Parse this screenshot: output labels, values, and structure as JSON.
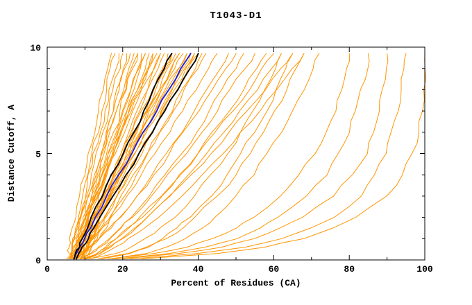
{
  "chart_data": {
    "type": "line",
    "title": "T1043-D1",
    "xlabel": "Percent of Residues (CA)",
    "ylabel": "Distance Cutoff, A",
    "xlim": [
      0,
      100
    ],
    "ylim": [
      0,
      10
    ],
    "xticks": [
      0,
      20,
      40,
      60,
      80,
      100
    ],
    "yticks": [
      0,
      5,
      10
    ],
    "x_minor_step": 10,
    "y_minor_step": 1,
    "grid": false,
    "legend": "none",
    "colors": {
      "orange": "#ff9500",
      "black": "#000000",
      "blue": "#2020d0"
    },
    "y_levels": [
      0.05,
      0.3,
      0.6,
      1,
      1.5,
      2,
      3,
      4,
      5,
      6,
      7,
      8,
      9,
      9.7
    ],
    "series": [
      {
        "group": "orange",
        "x": [
          5.1,
          5.4,
          5.7,
          6.2,
          6.9,
          7.5,
          8.7,
          9.9,
          11.2,
          12.4,
          13.7,
          14.9,
          16.1,
          17
        ]
      },
      {
        "group": "orange",
        "x": [
          5.6,
          6.0,
          6.4,
          6.9,
          7.6,
          8.3,
          9.6,
          10.9,
          12.2,
          13.4,
          14.7,
          15.9,
          17.1,
          18
        ]
      },
      {
        "group": "orange",
        "x": [
          6.0,
          6.3,
          6.7,
          7.2,
          7.8,
          8.5,
          9.8,
          11.1,
          12.5,
          13.9,
          15.2,
          16.6,
          18.0,
          19
        ]
      },
      {
        "group": "orange",
        "x": [
          6.1,
          6.4,
          6.9,
          7.4,
          8.2,
          8.9,
          10.3,
          11.8,
          13.2,
          14.7,
          16.1,
          17.6,
          19.0,
          20
        ]
      },
      {
        "group": "orange",
        "x": [
          6.6,
          7.1,
          7.7,
          8.4,
          9.2,
          10.0,
          11.6,
          13.0,
          14.5,
          15.9,
          17.3,
          18.7,
          20.1,
          21
        ]
      },
      {
        "group": "orange",
        "x": [
          7.0,
          7.3,
          7.7,
          8.2,
          8.9,
          9.6,
          11.1,
          12.7,
          14.2,
          15.9,
          17.5,
          19.1,
          20.8,
          22
        ]
      },
      {
        "group": "orange",
        "x": [
          7.1,
          7.5,
          8.0,
          8.6,
          9.5,
          10.3,
          11.9,
          13.6,
          15.2,
          16.9,
          18.6,
          20.2,
          21.8,
          23
        ]
      },
      {
        "group": "orange",
        "x": [
          7.6,
          8.1,
          8.7,
          9.4,
          10.3,
          11.2,
          12.9,
          14.6,
          16.3,
          18.0,
          19.6,
          21.2,
          22.9,
          24
        ]
      },
      {
        "group": "orange",
        "x": [
          8.1,
          8.4,
          8.9,
          9.6,
          10.4,
          11.2,
          13.0,
          14.7,
          16.5,
          18.3,
          20.1,
          21.9,
          23.7,
          25
        ]
      },
      {
        "group": "orange",
        "x": [
          8.1,
          8.6,
          9.1,
          9.9,
          10.8,
          11.7,
          13.6,
          15.4,
          17.3,
          19.1,
          21.0,
          22.9,
          24.7,
          26
        ]
      },
      {
        "group": "orange",
        "x": [
          6.2,
          6.9,
          7.7,
          8.7,
          9.9,
          11.1,
          13.3,
          15.5,
          17.6,
          19.6,
          21.7,
          23.7,
          25.6,
          27
        ]
      },
      {
        "group": "orange",
        "x": [
          6.6,
          7.2,
          7.8,
          8.7,
          9.8,
          10.9,
          13.1,
          15.4,
          17.6,
          19.8,
          22.0,
          24.2,
          26.5,
          28
        ]
      },
      {
        "group": "orange",
        "x": [
          7.1,
          7.5,
          8.0,
          8.8,
          9.8,
          10.9,
          13.1,
          15.3,
          17.6,
          20.0,
          22.4,
          24.8,
          27.3,
          29
        ]
      },
      {
        "group": "orange",
        "x": [
          7.7,
          8.3,
          9.1,
          10.1,
          11.3,
          12.5,
          14.9,
          17.2,
          19.5,
          21.8,
          24.0,
          26.2,
          28.5,
          30
        ]
      },
      {
        "group": "orange",
        "x": [
          8.1,
          8.7,
          9.4,
          10.4,
          11.6,
          12.7,
          15.1,
          17.5,
          19.8,
          22.2,
          24.6,
          27.0,
          29.3,
          31
        ]
      },
      {
        "group": "orange",
        "x": [
          8.7,
          9.5,
          10.4,
          11.5,
          12.9,
          14.2,
          16.7,
          19.1,
          21.5,
          23.8,
          26.0,
          28.3,
          30.5,
          32
        ]
      },
      {
        "group": "orange",
        "x": [
          9.1,
          9.6,
          10.3,
          11.2,
          12.4,
          13.6,
          16.0,
          18.5,
          21.0,
          23.5,
          26.0,
          28.6,
          31.2,
          33
        ]
      },
      {
        "group": "orange",
        "x": [
          9.1,
          9.8,
          10.6,
          11.6,
          12.9,
          14.2,
          16.7,
          19.3,
          21.9,
          24.5,
          27.1,
          29.6,
          32.2,
          34
        ]
      },
      {
        "group": "orange",
        "x": [
          7.2,
          8.0,
          9.0,
          10.2,
          11.8,
          13.2,
          16.2,
          19.1,
          21.9,
          24.8,
          27.6,
          30.3,
          33.1,
          35
        ]
      },
      {
        "group": "orange",
        "x": [
          7.6,
          8.1,
          8.8,
          9.8,
          11.2,
          12.5,
          15.3,
          18.3,
          21.3,
          24.3,
          27.4,
          30.6,
          33.8,
          36
        ]
      },
      {
        "group": "orange",
        "x": [
          8.1,
          8.9,
          9.8,
          11.0,
          12.5,
          14.0,
          17.0,
          19.9,
          22.9,
          26.0,
          28.9,
          31.9,
          34.9,
          37
        ]
      },
      {
        "group": "orange",
        "x": [
          8.8,
          9.8,
          10.9,
          12.3,
          14.0,
          15.6,
          18.8,
          21.8,
          24.8,
          27.7,
          30.5,
          33.3,
          36.1,
          38
        ]
      },
      {
        "group": "orange",
        "x": [
          9.2,
          9.9,
          10.9,
          12.1,
          13.7,
          15.2,
          18.3,
          21.4,
          24.5,
          27.6,
          30.7,
          33.8,
          36.8,
          39
        ]
      },
      {
        "group": "orange",
        "x": [
          9.6,
          10.3,
          11.2,
          12.3,
          13.8,
          15.3,
          18.4,
          21.5,
          24.7,
          27.9,
          31.2,
          34.4,
          37.7,
          40
        ]
      },
      {
        "group": "orange",
        "x": [
          10.2,
          11.2,
          12.2,
          13.6,
          15.3,
          16.9,
          20.2,
          23.4,
          26.5,
          29.7,
          32.8,
          35.8,
          38.9,
          41
        ]
      },
      {
        "group": "orange",
        "x": [
          10.2,
          11.0,
          12.0,
          13.3,
          15.0,
          16.6,
          19.9,
          23.2,
          26.5,
          29.8,
          33.1,
          36.4,
          39.7,
          42
        ]
      },
      {
        "group": "orange",
        "x": [
          6.0,
          6.3,
          6.7,
          7.3,
          8.1,
          8.9,
          10.7,
          12.5,
          14.4,
          16.4,
          18.4,
          20.4,
          22.5,
          24
        ]
      },
      {
        "group": "orange",
        "x": [
          6.5,
          6.9,
          7.3,
          7.9,
          8.8,
          9.7,
          11.6,
          13.5,
          15.6,
          17.7,
          19.9,
          22.1,
          24.4,
          26
        ]
      },
      {
        "group": "orange",
        "x": [
          7.0,
          7.3,
          7.7,
          8.4,
          9.2,
          10.2,
          12.1,
          14.2,
          16.5,
          18.8,
          21.2,
          23.7,
          26.2,
          28
        ]
      },
      {
        "group": "orange",
        "x": [
          7.5,
          7.9,
          8.3,
          9.0,
          9.9,
          10.9,
          13.0,
          15.3,
          17.7,
          20.2,
          22.7,
          25.4,
          28.1,
          30
        ]
      },
      {
        "group": "orange",
        "x": [
          8.1,
          8.5,
          9.0,
          9.8,
          10.9,
          12.1,
          14.5,
          17.0,
          19.7,
          22.4,
          25.2,
          28.0,
          31.0,
          33
        ]
      },
      {
        "group": "orange",
        "x": [
          8.6,
          8.9,
          9.4,
          10.2,
          11.3,
          12.5,
          15.0,
          17.6,
          20.5,
          23.4,
          26.4,
          29.5,
          32.7,
          35
        ]
      },
      {
        "group": "orange",
        "x": [
          9.1,
          9.5,
          10.2,
          11.1,
          12.3,
          13.5,
          16.3,
          19.1,
          22.1,
          25.1,
          28.3,
          31.4,
          34.7,
          37
        ]
      },
      {
        "group": "orange",
        "x": [
          9.6,
          10.0,
          10.6,
          11.4,
          12.7,
          13.9,
          16.7,
          19.7,
          22.8,
          26.1,
          29.5,
          32.9,
          36.5,
          39
        ]
      },
      {
        "group": "orange",
        "x": [
          6.5,
          8.4,
          10.2,
          12.3,
          14.8,
          17.0,
          21.3,
          25.2,
          28.9,
          32.6,
          36.1,
          39.5,
          42.7,
          45
        ]
      },
      {
        "group": "orange",
        "x": [
          7.3,
          9.6,
          11.7,
          14.1,
          16.8,
          19.2,
          23.7,
          27.8,
          31.7,
          35.5,
          39.0,
          42.4,
          45.8,
          48
        ]
      },
      {
        "group": "orange",
        "x": [
          7.6,
          9.7,
          11.6,
          14.0,
          16.7,
          19.2,
          23.8,
          28.2,
          32.3,
          36.3,
          40.2,
          43.9,
          47.5,
          50
        ]
      },
      {
        "group": "orange",
        "x": [
          8.6,
          11.4,
          13.9,
          16.6,
          19.6,
          22.2,
          27.1,
          31.4,
          35.5,
          39.3,
          42.9,
          46.4,
          49.7,
          52
        ]
      },
      {
        "group": "orange",
        "x": [
          8.9,
          11.5,
          13.8,
          16.6,
          19.6,
          22.4,
          27.5,
          32.2,
          36.6,
          40.8,
          44.8,
          48.7,
          52.5,
          55
        ]
      },
      {
        "group": "orange",
        "x": [
          9.7,
          12.9,
          15.6,
          18.6,
          21.9,
          24.9,
          30.3,
          35.1,
          39.6,
          43.9,
          47.9,
          51.8,
          55.5,
          58
        ]
      },
      {
        "group": "orange",
        "x": [
          10.0,
          12.8,
          15.3,
          18.3,
          21.6,
          24.6,
          30.1,
          35.2,
          40.0,
          44.6,
          48.9,
          53.2,
          57.2,
          60
        ]
      },
      {
        "group": "orange",
        "x": [
          10.3,
          13.7,
          16.6,
          19.8,
          23.4,
          26.5,
          32.3,
          37.5,
          42.3,
          46.9,
          51.2,
          55.3,
          59.3,
          62
        ]
      },
      {
        "group": "orange",
        "x": [
          10.6,
          13.6,
          16.4,
          19.6,
          23.2,
          26.5,
          32.5,
          38.0,
          43.2,
          48.2,
          53.0,
          57.6,
          62.0,
          65
        ]
      },
      {
        "group": "orange",
        "x": [
          11.4,
          15.1,
          18.3,
          21.8,
          25.7,
          29.2,
          35.5,
          41.2,
          46.5,
          51.5,
          56.2,
          60.7,
          65.0,
          68
        ]
      },
      {
        "group": "orange",
        "x": [
          11.2,
          17.8,
          22.0,
          26.2,
          30.3,
          33.5,
          39.0,
          43.6,
          47.6,
          51.1,
          54.4,
          57.4,
          60.2,
          62
        ]
      },
      {
        "group": "orange",
        "x": [
          13.5,
          21.1,
          25.8,
          30.1,
          34.3,
          37.6,
          43.1,
          47.5,
          51.4,
          54.8,
          57.9,
          60.7,
          63.3,
          65
        ]
      },
      {
        "group": "orange",
        "x": [
          14.3,
          22.2,
          27.1,
          31.6,
          36.0,
          39.4,
          45.1,
          49.8,
          53.8,
          57.3,
          60.6,
          63.5,
          66.2,
          68
        ]
      },
      {
        "group": "orange",
        "x": [
          17.2,
          26.3,
          31.6,
          36.4,
          40.9,
          44.4,
          50.1,
          54.7,
          58.6,
          62.0,
          65.0,
          67.8,
          70.3,
          72
        ]
      },
      {
        "group": "orange",
        "x": [
          16.0,
          28.0,
          37.0,
          44.0,
          50.0,
          54.5,
          62.0,
          67.0,
          70.8,
          74.0,
          76.3,
          78.0,
          79.3,
          80
        ]
      },
      {
        "group": "orange",
        "x": [
          18.0,
          32.0,
          42.0,
          50.0,
          56.0,
          61.0,
          69.0,
          74.0,
          77.5,
          80.0,
          82.0,
          83.4,
          84.5,
          85
        ]
      },
      {
        "group": "orange",
        "x": [
          20.0,
          35.0,
          46.0,
          55.0,
          62.0,
          68.0,
          76.0,
          81.0,
          84.5,
          86.5,
          88.0,
          89.0,
          89.7,
          90
        ]
      },
      {
        "group": "orange",
        "x": [
          22.0,
          40.0,
          52.0,
          62.0,
          70.0,
          76.0,
          83.0,
          87.0,
          89.5,
          91.5,
          93.0,
          94.0,
          94.7,
          95
        ]
      },
      {
        "group": "orange",
        "x": [
          25.0,
          45.0,
          58.0,
          68.0,
          76.0,
          82.0,
          90.0,
          94.0,
          96.5,
          98.0,
          99.0,
          99.4,
          99.8,
          100
        ]
      },
      {
        "group": "blue",
        "x": [
          7.1,
          7.8,
          8.7,
          9.9,
          11.4,
          12.9,
          16.0,
          19.2,
          22.4,
          25.7,
          29.0,
          32.3,
          35.7,
          38
        ]
      },
      {
        "group": "black",
        "x": [
          7.1,
          7.7,
          8.4,
          9.4,
          10.7,
          11.9,
          14.6,
          17.2,
          19.9,
          22.7,
          25.5,
          28.2,
          31.0,
          33
        ]
      },
      {
        "group": "black",
        "x": [
          7.7,
          8.5,
          9.5,
          10.8,
          12.5,
          14.2,
          17.5,
          20.9,
          24.2,
          27.6,
          31.0,
          34.3,
          37.7,
          40
        ]
      }
    ]
  }
}
